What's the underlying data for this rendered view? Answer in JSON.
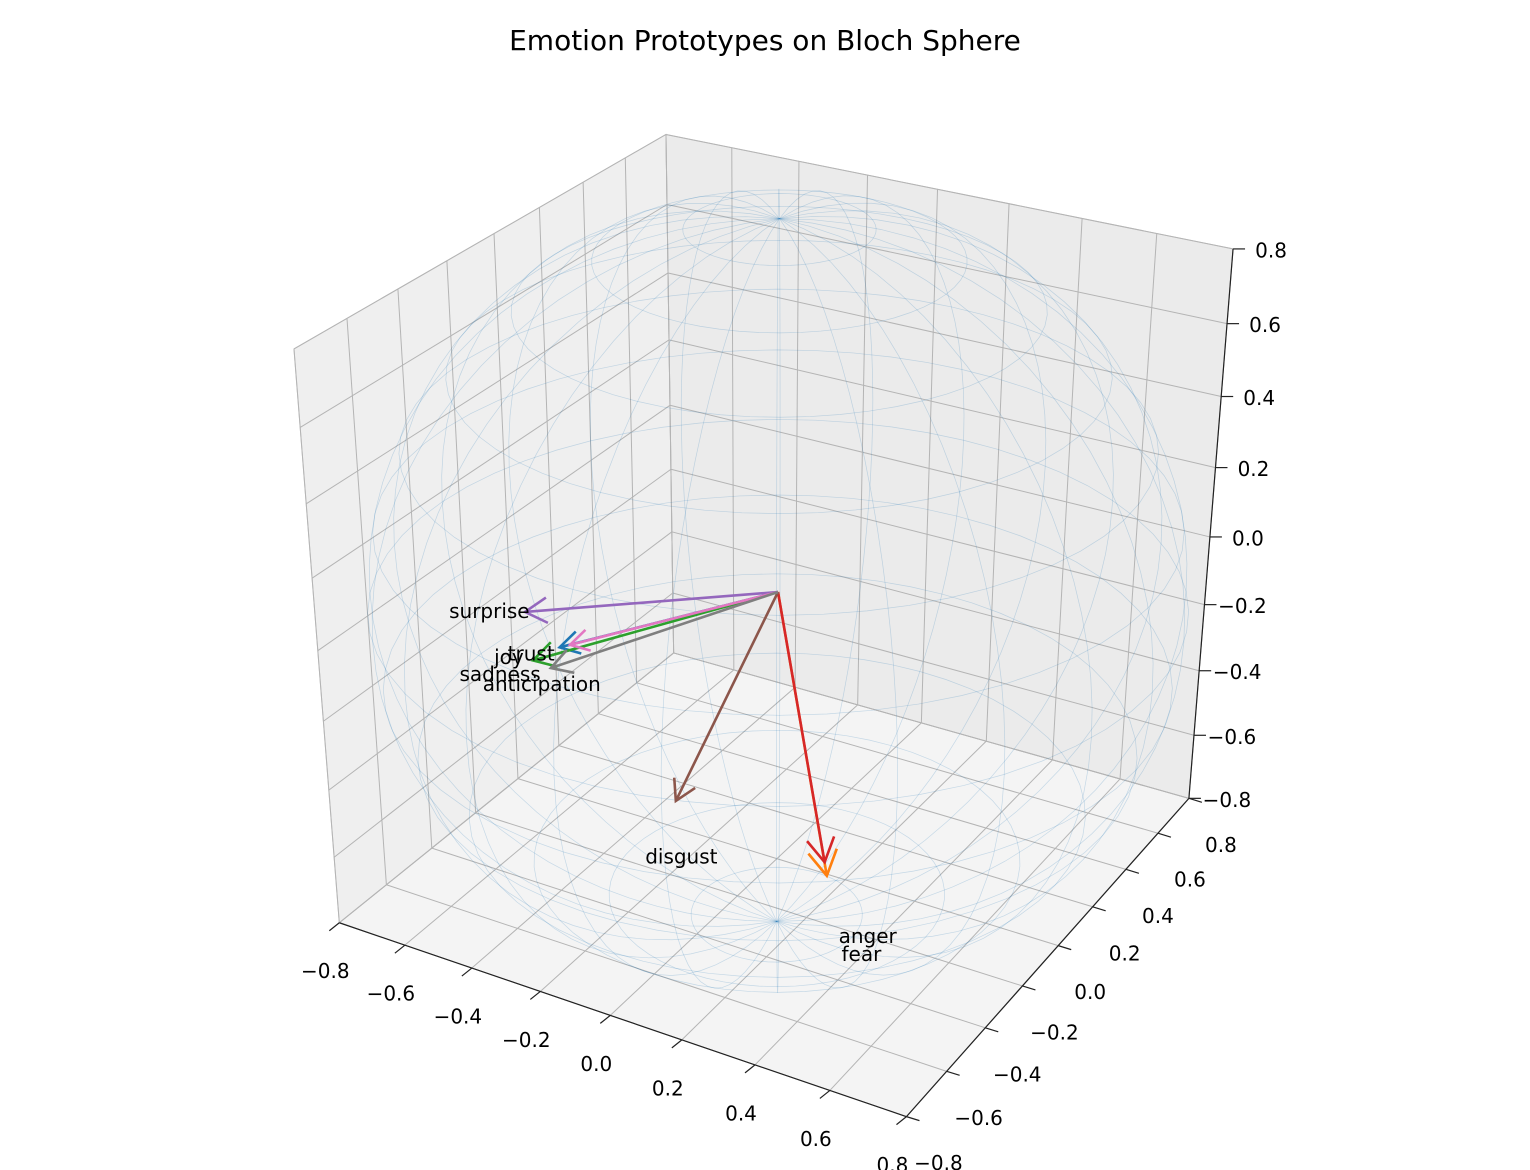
{
  "chart_data": {
    "type": "quiver3d",
    "title": "Emotion Prototypes on Bloch Sphere",
    "xlim": [
      -0.8,
      0.8
    ],
    "ylim": [
      -0.8,
      0.8
    ],
    "zlim": [
      -0.8,
      0.8
    ],
    "xticks": [
      {
        "value": -0.8,
        "label": "−0.8"
      },
      {
        "value": -0.6,
        "label": "−0.6"
      },
      {
        "value": -0.4,
        "label": "−0.4"
      },
      {
        "value": -0.2,
        "label": "−0.2"
      },
      {
        "value": 0,
        "label": "0.0"
      },
      0.2,
      0.4,
      0.6,
      0.8
    ],
    "yticks": [
      {
        "value": -0.8,
        "label": "−0.8"
      },
      {
        "value": -0.6,
        "label": "−0.6"
      },
      {
        "value": -0.4,
        "label": "−0.4"
      },
      {
        "value": -0.2,
        "label": "−0.2"
      },
      {
        "value": 0,
        "label": "0.0"
      },
      0.2,
      0.4,
      0.6,
      0.8
    ],
    "zticks": [
      {
        "value": -0.8,
        "label": "−0.8"
      },
      {
        "value": -0.6,
        "label": "−0.6"
      },
      {
        "value": -0.4,
        "label": "−0.4"
      },
      {
        "value": -0.2,
        "label": "−0.2"
      },
      {
        "value": 0,
        "label": "0.0"
      },
      0.2,
      0.4,
      0.6,
      0.8
    ],
    "grid": true,
    "series": [
      {
        "name": "joy",
        "color": "#1f77b4",
        "vector": [
          -0.82,
          0.25,
          -0.515
        ]
      },
      {
        "name": "fear",
        "color": "#ff7f0e",
        "vector": [
          0.025,
          0.223,
          -0.975
        ]
      },
      {
        "name": "sadness",
        "color": "#2ca02c",
        "vector": [
          -0.845,
          0.158,
          -0.518
        ]
      },
      {
        "name": "anger",
        "color": "#d62728",
        "vector": [
          -0.003,
          0.261,
          -0.962
        ]
      },
      {
        "name": "surprise",
        "color": "#9467bd",
        "vector": [
          -0.895,
          0.202,
          -0.401
        ]
      },
      {
        "name": "disgust",
        "color": "#8c564b",
        "vector": [
          -0.435,
          0.212,
          -0.874
        ]
      },
      {
        "name": "trust",
        "color": "#e377c2",
        "vector": [
          -0.806,
          0.28,
          -0.518
        ]
      },
      {
        "name": "anticipation",
        "color": "#7f7f7f",
        "vector": [
          -0.81,
          0.19,
          -0.548
        ]
      }
    ]
  }
}
